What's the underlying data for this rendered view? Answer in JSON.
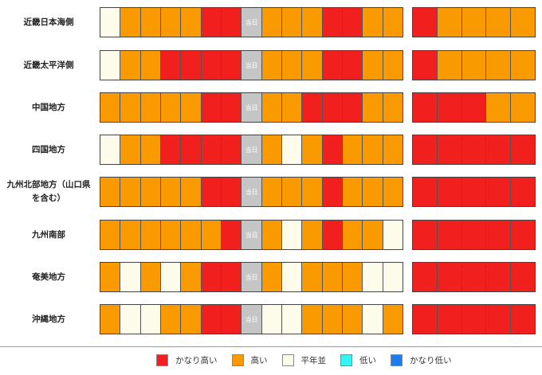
{
  "today_label": "当日",
  "levels": {
    "vh": {
      "label": "かなり高い",
      "color": "#f21f1f"
    },
    "h": {
      "label": "高い",
      "color": "#f99a00"
    },
    "n": {
      "label": "平年並",
      "color": "#fdfbea"
    },
    "l": {
      "label": "低い",
      "color": "#33f5f5"
    },
    "vl": {
      "label": "かなり低い",
      "color": "#1a7df0"
    }
  },
  "legend_order": [
    "vh",
    "h",
    "n",
    "l",
    "vl"
  ],
  "regions": [
    {
      "name": "近畿日本海側",
      "main": [
        "n",
        "h",
        "h",
        "h",
        "h",
        "vh",
        "vh",
        "today",
        "h",
        "h",
        "h",
        "vh",
        "vh",
        "h",
        "h"
      ],
      "ext": [
        "vh",
        "h",
        "h",
        "h",
        "h"
      ]
    },
    {
      "name": "近畿太平洋側",
      "main": [
        "n",
        "h",
        "h",
        "vh",
        "vh",
        "vh",
        "vh",
        "today",
        "h",
        "h",
        "h",
        "vh",
        "vh",
        "h",
        "h"
      ],
      "ext": [
        "vh",
        "h",
        "h",
        "h",
        "h"
      ]
    },
    {
      "name": "中国地方",
      "main": [
        "h",
        "h",
        "h",
        "h",
        "h",
        "vh",
        "vh",
        "today",
        "h",
        "h",
        "vh",
        "vh",
        "vh",
        "h",
        "h"
      ],
      "ext": [
        "vh",
        "vh",
        "vh",
        "h",
        "h"
      ]
    },
    {
      "name": "四国地方",
      "main": [
        "n",
        "h",
        "h",
        "vh",
        "vh",
        "vh",
        "vh",
        "today",
        "h",
        "n",
        "h",
        "vh",
        "h",
        "h",
        "h"
      ],
      "ext": [
        "vh",
        "vh",
        "vh",
        "vh",
        "vh"
      ]
    },
    {
      "name": "九州北部地方（山口県を含む）",
      "name_lines": [
        "九州北部地方（山口県",
        "を含む）"
      ],
      "main": [
        "h",
        "h",
        "h",
        "h",
        "h",
        "vh",
        "vh",
        "today",
        "h",
        "h",
        "h",
        "vh",
        "h",
        "h",
        "h"
      ],
      "ext": [
        "vh",
        "vh",
        "vh",
        "vh",
        "vh"
      ]
    },
    {
      "name": "九州南部",
      "main": [
        "h",
        "h",
        "h",
        "h",
        "h",
        "h",
        "vh",
        "today",
        "h",
        "n",
        "h",
        "vh",
        "h",
        "h",
        "n"
      ],
      "ext": [
        "vh",
        "vh",
        "vh",
        "vh",
        "vh"
      ]
    },
    {
      "name": "奄美地方",
      "main": [
        "h",
        "n",
        "h",
        "n",
        "h",
        "vh",
        "vh",
        "today",
        "h",
        "n",
        "h",
        "h",
        "h",
        "n",
        "n"
      ],
      "ext": [
        "vh",
        "vh",
        "vh",
        "vh",
        "vh"
      ]
    },
    {
      "name": "沖縄地方",
      "main": [
        "h",
        "n",
        "n",
        "h",
        "h",
        "vh",
        "vh",
        "today",
        "n",
        "n",
        "h",
        "h",
        "h",
        "n",
        "h"
      ],
      "ext": [
        "vh",
        "vh",
        "vh",
        "vh",
        "vh"
      ]
    }
  ]
}
